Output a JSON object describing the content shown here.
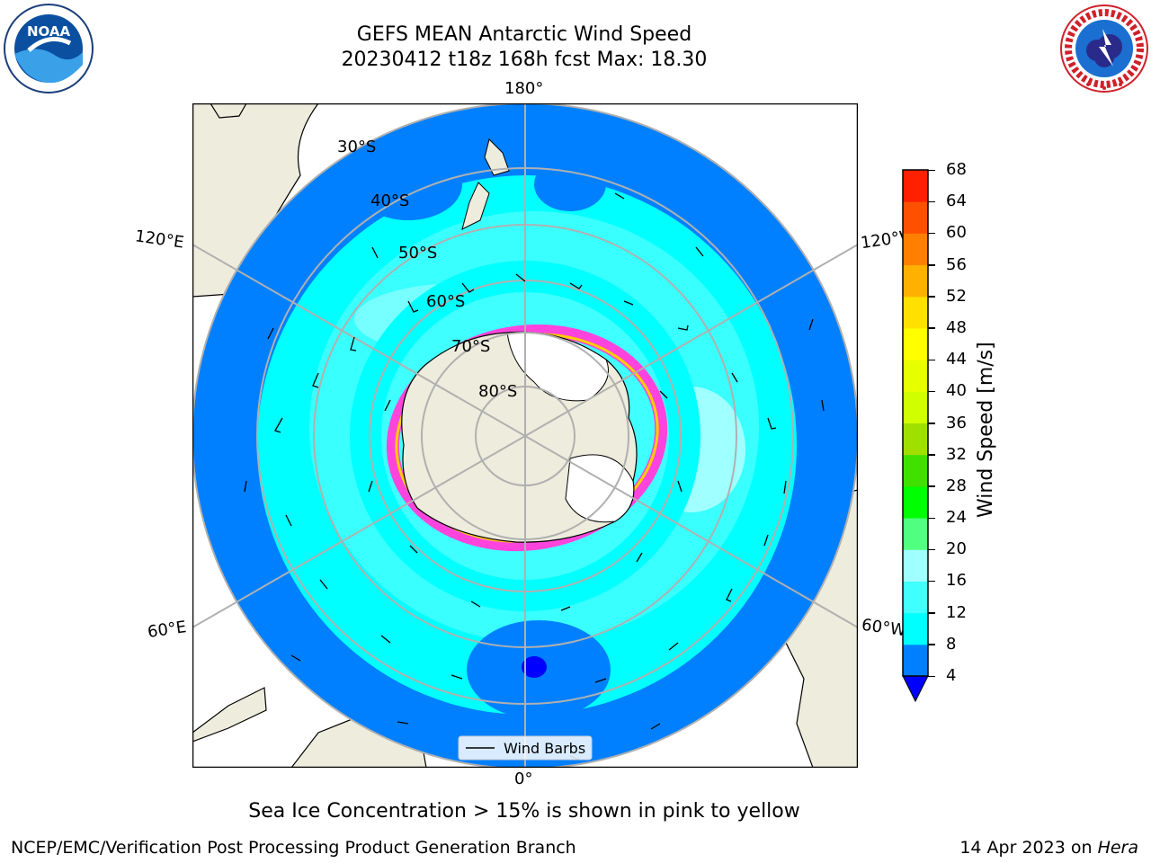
{
  "header": {
    "title_line1": "GEFS MEAN Antarctic Wind Speed",
    "title_line2": "20230412 t18z 168h fcst   Max: 18.30"
  },
  "logos": {
    "left": {
      "name": "noaa-logo",
      "text": "NOAA",
      "color": "#0a4fa0"
    },
    "right": {
      "name": "nws-logo",
      "color": "#1a6fd0",
      "ring_color": "#d0202a"
    }
  },
  "map": {
    "projection": "south-polar-stereographic",
    "longitude_labels": {
      "top": "180°",
      "bottom": "0°",
      "left_upper": "120°E",
      "left_lower": "60°E",
      "right_upper": "120°W",
      "right_lower": "60°W"
    },
    "latitude_labels": [
      "30°S",
      "40°S",
      "50°S",
      "60°S",
      "70°S",
      "80°S"
    ],
    "legend_label": "Wind Barbs",
    "colors": {
      "land": "#eeecdc",
      "ice": "#ffffff",
      "sea_ice_edge": "#ff44dd",
      "sea_ice_edge_inner": "#ffcc00",
      "grid": "#b0b0b0"
    }
  },
  "colorbar": {
    "label": "Wind Speed [m/s]",
    "ticks": [
      "4",
      "8",
      "12",
      "16",
      "20",
      "24",
      "28",
      "32",
      "36",
      "40",
      "44",
      "48",
      "52",
      "56",
      "60",
      "64",
      "68"
    ],
    "underflow_color": "#0000ff",
    "colors": [
      "#0080ff",
      "#00ffff",
      "#40ffff",
      "#a0ffff",
      "#50ff80",
      "#00ff00",
      "#40e000",
      "#a0e000",
      "#d0ff00",
      "#e8ff00",
      "#ffff00",
      "#ffe000",
      "#ffb000",
      "#ff8000",
      "#ff5000",
      "#ff2000"
    ]
  },
  "subtitle": "Sea Ice Concentration > 15% is shown in pink to yellow",
  "footer": {
    "left": "NCEP/EMC/Verification Post Processing Product Generation Branch",
    "right_prefix": "14 Apr 2023 on",
    "right_host": "Hera"
  }
}
